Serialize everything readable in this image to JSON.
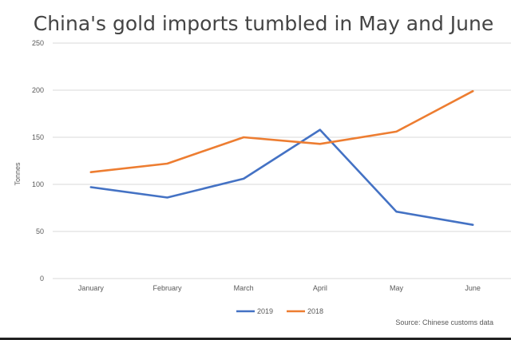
{
  "chart_data": {
    "type": "line",
    "title": "China's gold imports tumbled in May and June",
    "ylabel": "Tonnes",
    "xlabel": "",
    "ylim": [
      0,
      250
    ],
    "yticks": [
      0,
      50,
      100,
      150,
      200,
      250
    ],
    "categories": [
      "January",
      "February",
      "March",
      "April",
      "May",
      "June"
    ],
    "series": [
      {
        "name": "2019",
        "color": "#4472c4",
        "values": [
          97,
          86,
          106,
          158,
          71,
          57
        ]
      },
      {
        "name": "2018",
        "color": "#ed7d31",
        "values": [
          113,
          122,
          150,
          143,
          156,
          199
        ]
      }
    ],
    "grid": true,
    "legend_position": "bottom",
    "source": "Source: Chinese customs data"
  }
}
